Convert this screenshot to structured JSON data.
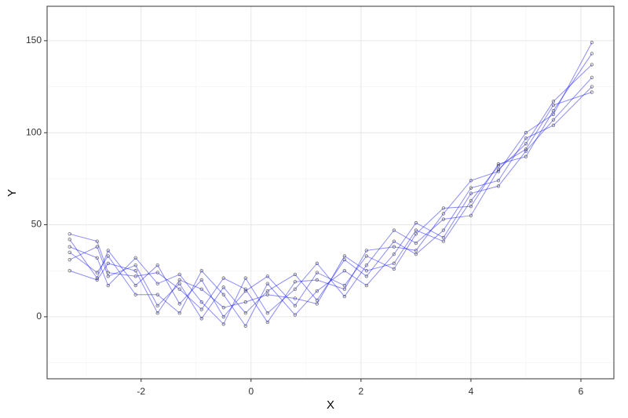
{
  "chart_data": {
    "type": "line",
    "x_label": "X",
    "y_label": "Y",
    "x": [
      -3.3,
      -2.8,
      -2.6,
      -2.1,
      -1.7,
      -1.3,
      -0.9,
      -0.5,
      -0.1,
      0.3,
      0.8,
      1.2,
      1.7,
      2.1,
      2.6,
      3.0,
      3.5,
      4.0,
      4.5,
      5.0,
      5.5,
      6.2
    ],
    "series": [
      {
        "color": "#0000ff",
        "values": [
          42,
          21,
          36,
          17,
          28,
          7,
          20,
          0,
          14,
          22,
          6,
          24,
          17,
          33,
          26,
          45,
          59,
          60,
          83,
          87,
          112,
          143
        ]
      },
      {
        "color": "#0000ff",
        "values": [
          31,
          38,
          22,
          28,
          6,
          18,
          -1,
          16,
          2,
          14,
          23,
          9,
          31,
          22,
          41,
          34,
          47,
          70,
          74,
          97,
          104,
          125
        ]
      },
      {
        "color": "#0000ff",
        "values": [
          38,
          32,
          17,
          32,
          18,
          23,
          8,
          -4,
          21,
          2,
          15,
          29,
          11,
          28,
          47,
          40,
          53,
          55,
          80,
          94,
          117,
          137
        ]
      },
      {
        "color": "#0000ff",
        "values": [
          35,
          24,
          33,
          12,
          12,
          2,
          25,
          12,
          -5,
          18,
          1,
          14,
          25,
          17,
          34,
          51,
          43,
          67,
          71,
          90,
          107,
          130
        ]
      },
      {
        "color": "#0000ff",
        "values": [
          45,
          41,
          24,
          22,
          24,
          15,
          4,
          21,
          15,
          -3,
          19,
          20,
          15,
          36,
          38,
          36,
          56,
          74,
          79,
          100,
          110,
          149
        ]
      },
      {
        "color": "#0000ff",
        "values": [
          25,
          20,
          29,
          25,
          2,
          20,
          15,
          5,
          8,
          12,
          10,
          7,
          33,
          25,
          29,
          47,
          41,
          63,
          82,
          91,
          115,
          122
        ]
      }
    ],
    "point_color": "#333333",
    "xlim": [
      -3.71,
      6.6
    ],
    "ylim": [
      -33.7,
      168.7
    ],
    "xticks": [
      -2,
      0,
      2,
      4,
      6
    ],
    "yticks": [
      0,
      50,
      100,
      150
    ],
    "x_minor_ticks": [
      -3,
      -1,
      1,
      3,
      5
    ],
    "y_minor_ticks": [
      -25,
      25,
      75,
      125
    ],
    "grid": true
  }
}
